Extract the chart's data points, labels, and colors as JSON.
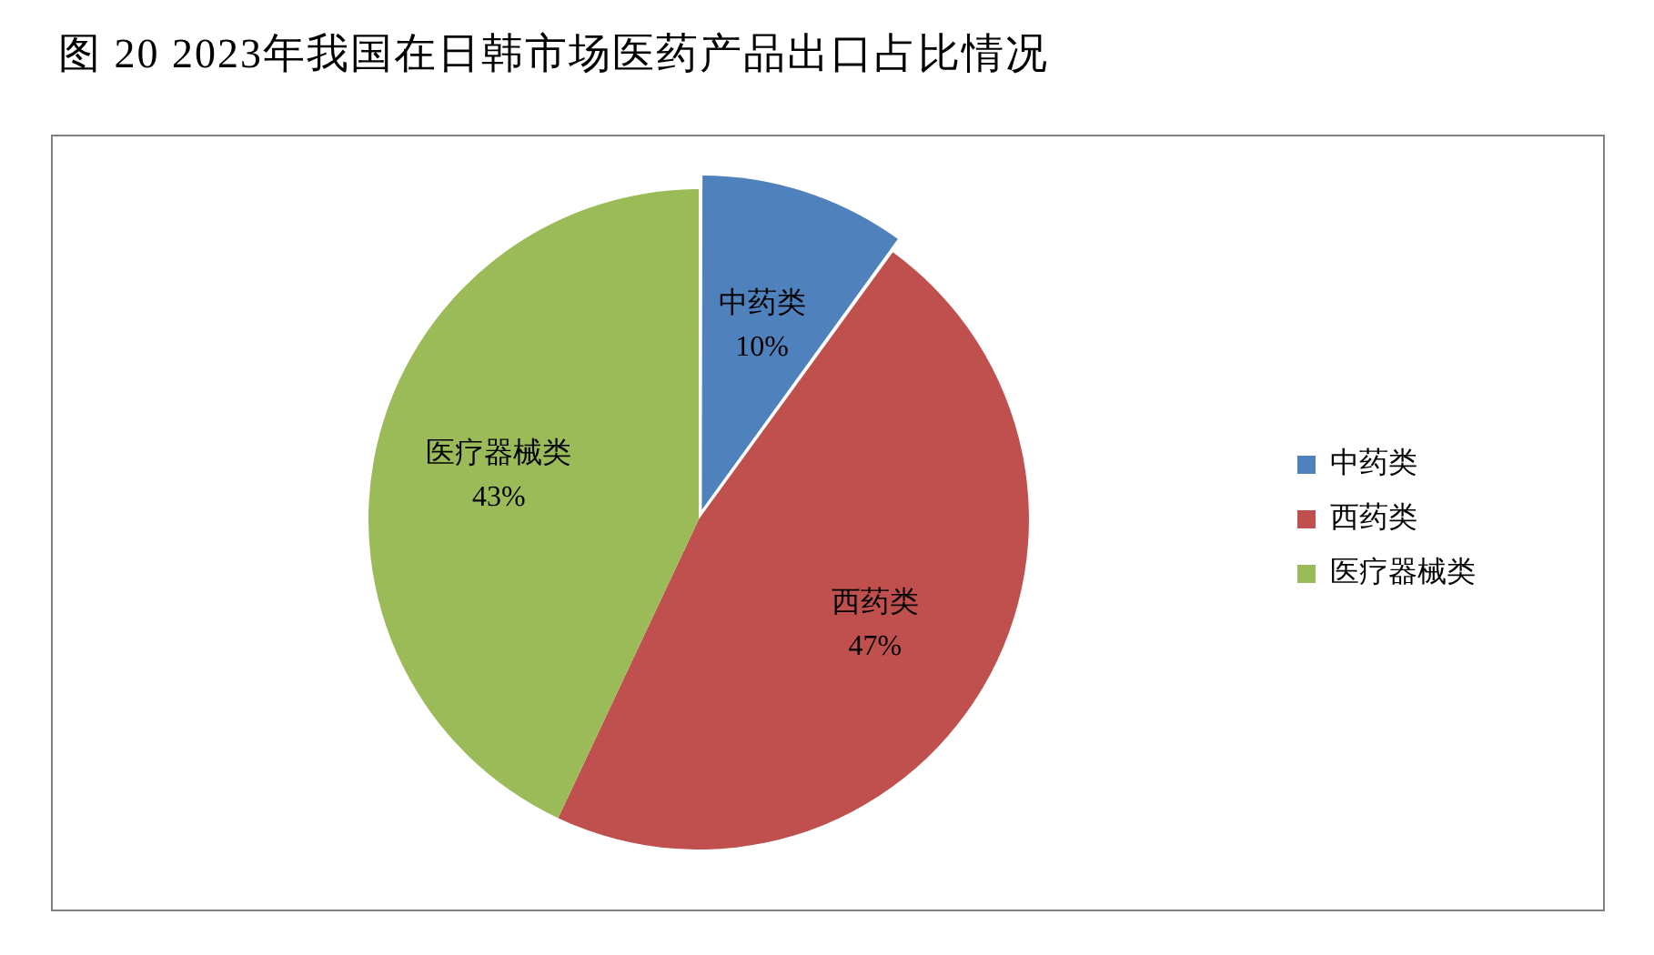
{
  "chart_data": {
    "type": "pie",
    "title": "图 20 2023年我国在日韩市场医药产品出口占比情况",
    "categories": [
      "中药类",
      "西药类",
      "医疗器械类"
    ],
    "values": [
      10,
      47,
      43
    ],
    "value_labels": [
      "10%",
      "47%",
      "43%"
    ],
    "colors": [
      "#4f81bd",
      "#c0504d",
      "#9bbb59"
    ],
    "legend": "right"
  }
}
